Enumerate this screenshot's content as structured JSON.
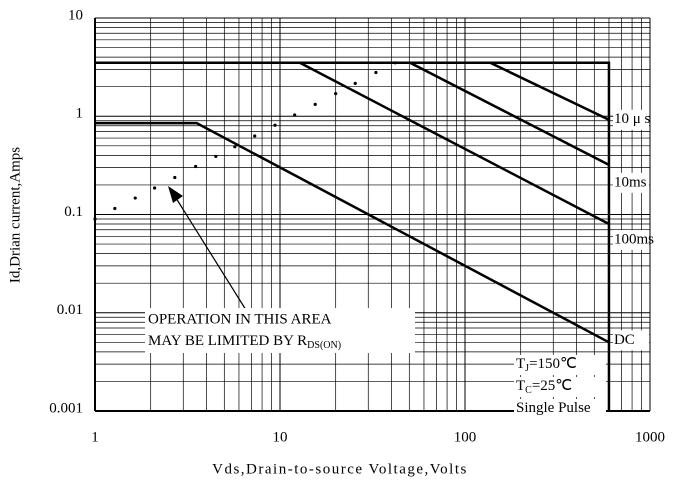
{
  "chart_data": {
    "type": "line",
    "xlabel": "Vds,Drain-to-source Voltage,Volts",
    "ylabel": "Id,Drian current,Amps",
    "log_x": true,
    "log_y": true,
    "grid": true,
    "minor_grid": true,
    "xlim": [
      1,
      1000
    ],
    "xticks": [
      1,
      10,
      100,
      1000
    ],
    "ylim": [
      0.001,
      10
    ],
    "yticks": [
      10,
      1,
      0.1,
      0.01,
      0.001
    ],
    "series": [
      {
        "color": "#000000",
        "x": [
          1,
          600,
          600
        ],
        "values": [
          3.5,
          3.5,
          0.001
        ]
      },
      {
        "name": "10 μ s",
        "color": "#000000",
        "x": [
          137,
          600
        ],
        "values": [
          3.5,
          0.92
        ]
      },
      {
        "name": "10ms",
        "color": "#000000",
        "x": [
          50.5,
          600
        ],
        "values": [
          3.5,
          0.32
        ]
      },
      {
        "name": "100ms",
        "color": "#000000",
        "x": [
          12.8,
          600
        ],
        "values": [
          3.5,
          0.08
        ]
      },
      {
        "name": "DC",
        "color": "#000000",
        "x": [
          1,
          3.55,
          600
        ],
        "values": [
          0.85,
          0.85,
          0.005
        ]
      }
    ],
    "rds_points": {
      "color": "#000000",
      "x": [
        1,
        1.28,
        1.65,
        2.1,
        2.7,
        3.5,
        4.5,
        5.7,
        7.3,
        9.4,
        12,
        15.5,
        20,
        25.5,
        33,
        42
      ],
      "values": [
        0.09,
        0.115,
        0.147,
        0.186,
        0.238,
        0.308,
        0.39,
        0.49,
        0.63,
        0.81,
        1.03,
        1.32,
        1.7,
        2.16,
        2.79,
        3.5
      ]
    },
    "annotation": {
      "line1": "OPERATION IN THIS AREA",
      "line2": "MAY BE LIMITED BY R",
      "line2_sub": "DS(ON)"
    },
    "conditions": [
      {
        "text": "T",
        "sub": "J",
        "rest": "=150℃"
      },
      {
        "text": "T",
        "sub": "C",
        "rest": "=25℃"
      },
      {
        "text": "Single Pulse"
      }
    ]
  }
}
